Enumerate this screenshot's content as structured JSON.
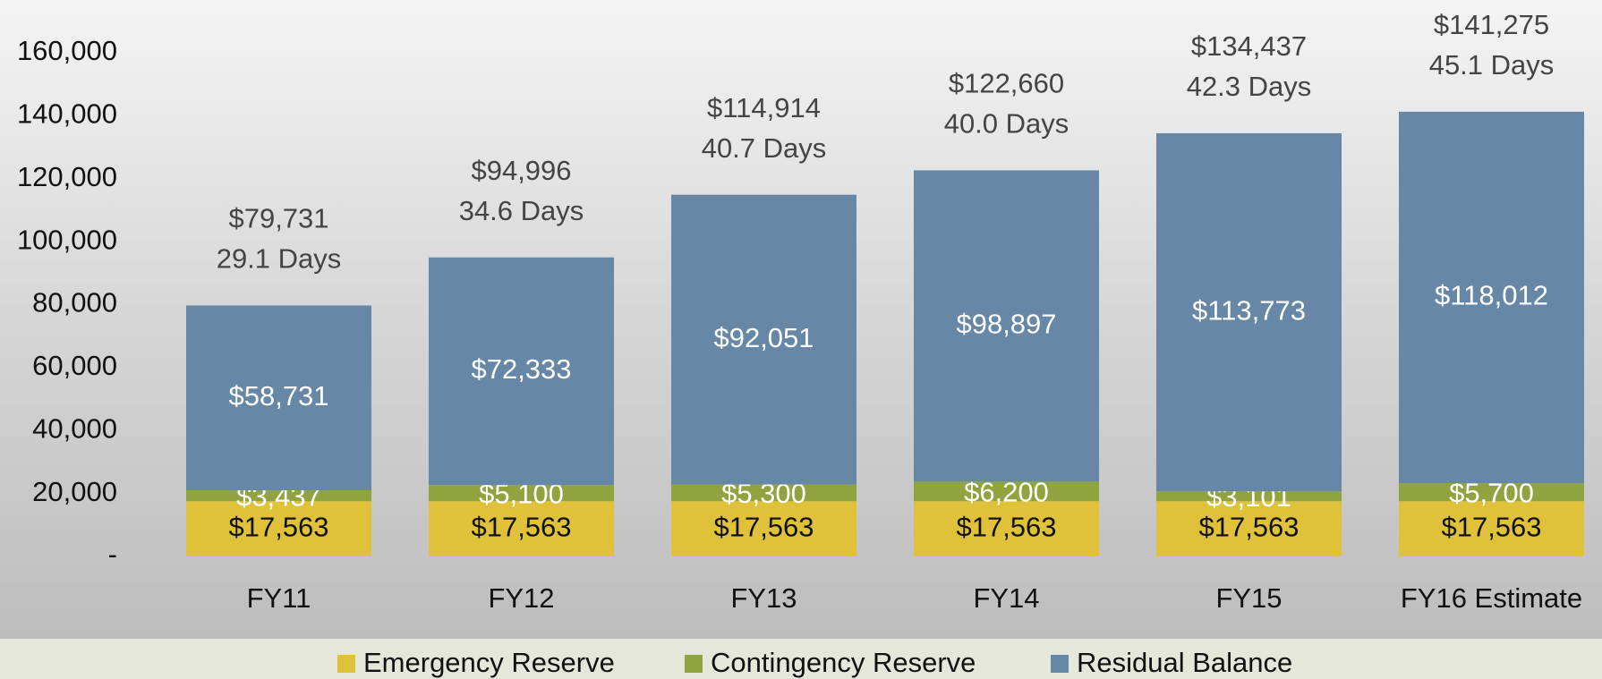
{
  "chart_data": {
    "type": "stacked-bar",
    "categories": [
      "FY11",
      "FY12",
      "FY13",
      "FY14",
      "FY15",
      "FY16 Estimate"
    ],
    "series": [
      {
        "name": "Emergency Reserve",
        "color": "#dfc23a",
        "label_color": "#111111",
        "values": [
          17563,
          17563,
          17563,
          17563,
          17563,
          17563
        ],
        "value_labels": [
          "$17,563",
          "$17,563",
          "$17,563",
          "$17,563",
          "$17,563",
          "$17,563"
        ]
      },
      {
        "name": "Contingency Reserve",
        "color": "#8fa33f",
        "label_color": "#ffffff",
        "values": [
          3437,
          5100,
          5300,
          6200,
          3101,
          5700
        ],
        "value_labels": [
          "$3,437",
          "$5,100",
          "$5,300",
          "$6,200",
          "$3,101",
          "$5,700"
        ]
      },
      {
        "name": "Residual Balance",
        "color": "#6688a6",
        "label_color": "#ffffff",
        "values": [
          58731,
          72333,
          92051,
          98897,
          113773,
          118012
        ],
        "value_labels": [
          "$58,731",
          "$72,333",
          "$92,051",
          "$98,897",
          "$113,773",
          "$118,012"
        ]
      }
    ],
    "total_labels": [
      "$79,731",
      "$94,996",
      "$114,914",
      "$122,660",
      "$134,437",
      "$141,275"
    ],
    "days_labels": [
      "29.1 Days",
      "34.6 Days",
      "40.7 Days",
      "40.0 Days",
      "42.3 Days",
      "45.1 Days"
    ],
    "ylim": [
      0,
      160000
    ],
    "yticks": [
      {
        "value": 0,
        "label": "-"
      },
      {
        "value": 20000,
        "label": "20,000"
      },
      {
        "value": 40000,
        "label": "40,000"
      },
      {
        "value": 60000,
        "label": "60,000"
      },
      {
        "value": 80000,
        "label": "80,000"
      },
      {
        "value": 100000,
        "label": "100,000"
      },
      {
        "value": 120000,
        "label": "120,000"
      },
      {
        "value": 140000,
        "label": "140,000"
      },
      {
        "value": 160000,
        "label": "160,000"
      }
    ],
    "grid": false,
    "legend": "bottom"
  }
}
